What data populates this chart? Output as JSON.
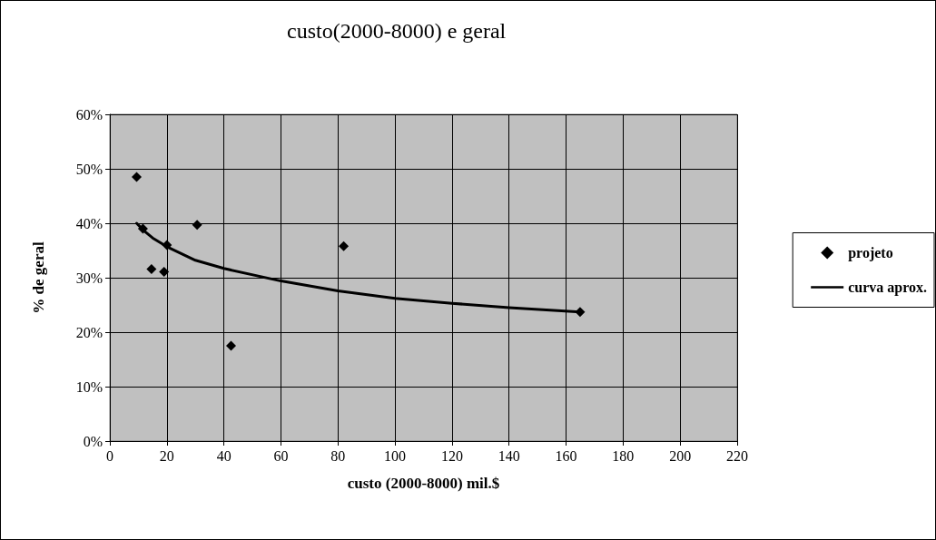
{
  "chart_data": {
    "type": "scatter",
    "title": "custo(2000-8000) e geral",
    "xlabel": "custo (2000-8000) mil.$",
    "ylabel": "% de geral",
    "series": [
      {
        "name": "projeto",
        "type": "scatter",
        "color": "#000000",
        "marker": "diamond",
        "x": [
          9.4,
          11.6,
          14.6,
          19,
          20,
          30.6,
          42.5,
          82,
          164.9
        ],
        "values": [
          48.5,
          39,
          31.6,
          31.1,
          36,
          39.7,
          17.5,
          35.8,
          23.7
        ]
      },
      {
        "name": "curva aprox.",
        "type": "line",
        "color": "#000000",
        "marker": "none",
        "line_style": "solid",
        "x": [
          9.4,
          12,
          15,
          20,
          30,
          40,
          60,
          80,
          100,
          120,
          140,
          164.9
        ],
        "values": [
          40,
          38.6,
          37.3,
          35.7,
          33.2,
          31.7,
          29.4,
          27.6,
          26.2,
          25.3,
          24.5,
          23.7
        ]
      }
    ],
    "xlim": [
      0,
      220
    ],
    "xticks": [
      0,
      20,
      40,
      60,
      80,
      100,
      120,
      140,
      160,
      180,
      200,
      220
    ],
    "ylim": [
      0,
      60
    ],
    "yticks": [
      {
        "value": 0,
        "label": "0%"
      },
      {
        "value": 10,
        "label": "10%"
      },
      {
        "value": 20,
        "label": "20%"
      },
      {
        "value": 30,
        "label": "30%"
      },
      {
        "value": 40,
        "label": "40%"
      },
      {
        "value": 50,
        "label": "50%"
      },
      {
        "value": 60,
        "label": "60%"
      }
    ],
    "grid": true,
    "legend": "right"
  }
}
